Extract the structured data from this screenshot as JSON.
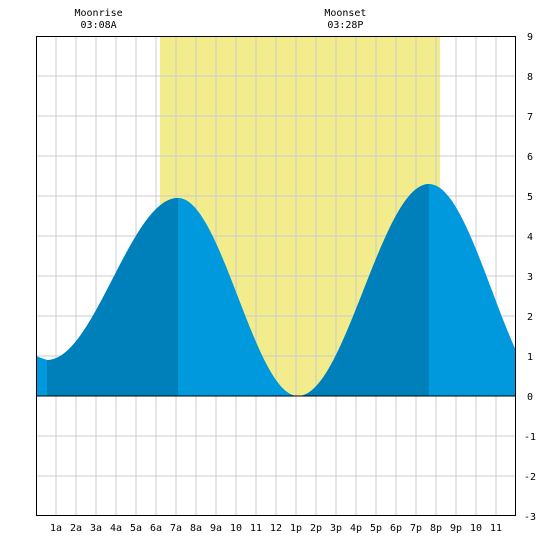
{
  "chart_data": {
    "type": "area",
    "x_unit": "hour of day",
    "xlim": [
      0,
      24
    ],
    "ylim": [
      -3,
      9
    ],
    "grid": true,
    "x_tick_labels": [
      "1a",
      "2a",
      "3a",
      "4a",
      "5a",
      "6a",
      "7a",
      "8a",
      "9a",
      "10",
      "11",
      "12",
      "1p",
      "2p",
      "3p",
      "4p",
      "5p",
      "6p",
      "7p",
      "8p",
      "9p",
      "10",
      "11"
    ],
    "y_tick_labels": [
      "-3",
      "-2",
      "-1",
      "0",
      "1",
      "2",
      "3",
      "4",
      "5",
      "6",
      "7",
      "8",
      "9"
    ],
    "moonrise": {
      "label": "Moonrise",
      "time": "03:08A",
      "hour": 3.13
    },
    "moonset": {
      "label": "Moonset",
      "time": "03:28P",
      "hour": 15.47
    },
    "daylight": {
      "start_hour": 6.2,
      "end_hour": 20.2
    },
    "tide_extremes": [
      {
        "type": "low",
        "hour": 0.55,
        "height": 0.9
      },
      {
        "type": "high",
        "hour": 7.1,
        "height": 4.95
      },
      {
        "type": "low",
        "hour": 13.1,
        "height": 0.0
      },
      {
        "type": "high",
        "hour": 19.65,
        "height": 5.3
      }
    ],
    "tide_start_height": 1.0,
    "tide_end_height": 1.5,
    "dark_bands": [
      {
        "start_hour": 0.55,
        "end_hour": 7.1
      },
      {
        "start_hour": 13.1,
        "end_hour": 19.65
      }
    ],
    "colors": {
      "daylight": "#f2ec8c",
      "tide": "#0099dd",
      "tide_dark": "#0080bb",
      "grid": "#cccccc",
      "axis": "#000000",
      "background": "#ffffff"
    }
  }
}
